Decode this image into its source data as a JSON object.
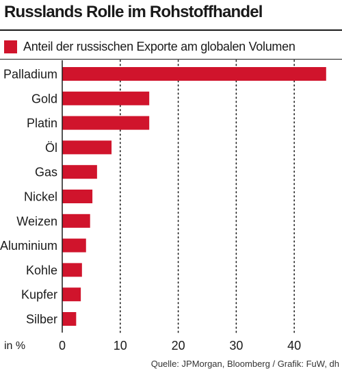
{
  "title": "Russlands Rolle im Rohstoffhandel",
  "source": "Quelle: JPMorgan, Bloomberg / Grafik: FuW, dh",
  "colors": {
    "bar": "#d0142c",
    "text": "#1a1a1a",
    "grid": "#1a1a1a"
  },
  "chart_data": {
    "type": "bar",
    "orientation": "horizontal",
    "title": "Russlands Rolle im Rohstoffhandel",
    "xlabel": "in %",
    "ylabel": "",
    "xlim": [
      0,
      48
    ],
    "xticks": [
      0,
      10,
      20,
      30,
      40
    ],
    "grid": "vertical dotted",
    "legend": "top",
    "categories": [
      "Palladium",
      "Gold",
      "Platin",
      "Öl",
      "Gas",
      "Nickel",
      "Weizen",
      "Aluminium",
      "Kohle",
      "Kupfer",
      "Silber"
    ],
    "series": [
      {
        "name": "Anteil der russischen Exporte am globalen Volumen",
        "values": [
          45.5,
          15,
          15,
          8.5,
          6,
          5.2,
          4.8,
          4.1,
          3.4,
          3.2,
          2.4
        ]
      }
    ]
  }
}
